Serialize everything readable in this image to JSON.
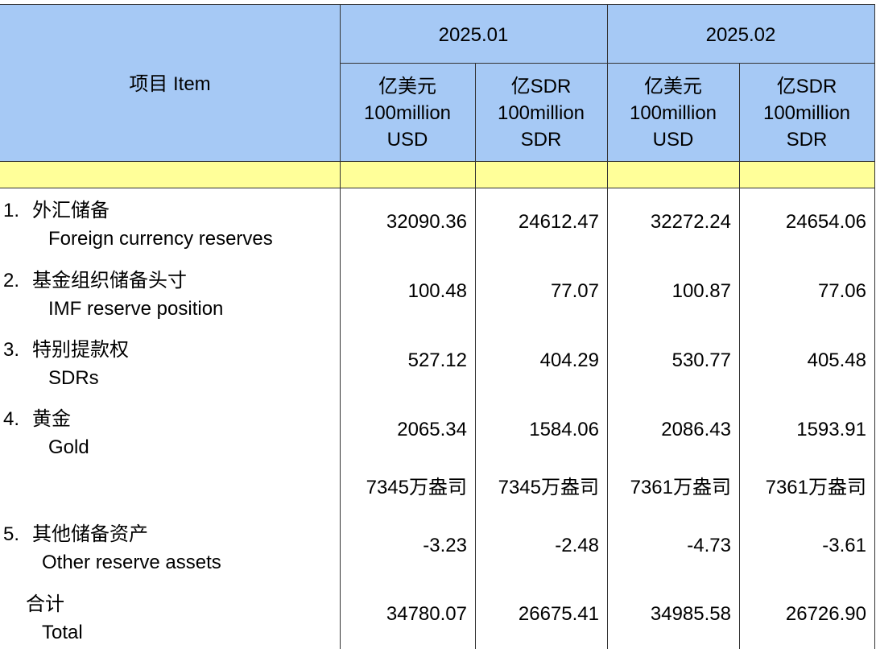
{
  "header": {
    "item": "项目  Item",
    "periods": [
      "2025.01",
      "2025.02"
    ],
    "units": [
      [
        "亿美元",
        "100million",
        "USD"
      ],
      [
        "亿SDR",
        "100million",
        "SDR"
      ],
      [
        "亿美元",
        "100million",
        "USD"
      ],
      [
        "亿SDR",
        "100million",
        "SDR"
      ]
    ]
  },
  "rows": [
    {
      "num": "1.",
      "cn": "外汇储备",
      "en": "Foreign currency reserves",
      "values": [
        "32090.36",
        "24612.47",
        "32272.24",
        "24654.06"
      ]
    },
    {
      "num": "2.",
      "cn": "基金组织储备头寸",
      "en": "IMF reserve position",
      "values": [
        "100.48",
        "77.07",
        "100.87",
        "77.06"
      ]
    },
    {
      "num": "3.",
      "cn": "特别提款权",
      "en": "SDRs",
      "values": [
        "527.12",
        "404.29",
        "530.77",
        "405.48"
      ]
    },
    {
      "num": "4.",
      "cn": "黄金",
      "en": "Gold",
      "values": [
        "2065.34",
        "1584.06",
        "2086.43",
        "1593.91"
      ]
    },
    {
      "values": [
        "7345万盎司",
        "7345万盎司",
        "7361万盎司",
        "7361万盎司"
      ]
    },
    {
      "num": "5.",
      "cn": "其他储备资产",
      "en": "Other reserve assets",
      "values": [
        "-3.23",
        "-2.48",
        "-4.73",
        "-3.61"
      ]
    },
    {
      "cn": "合计",
      "en": "Total",
      "values": [
        "34780.07",
        "26675.41",
        "34985.58",
        "26726.90"
      ]
    }
  ]
}
